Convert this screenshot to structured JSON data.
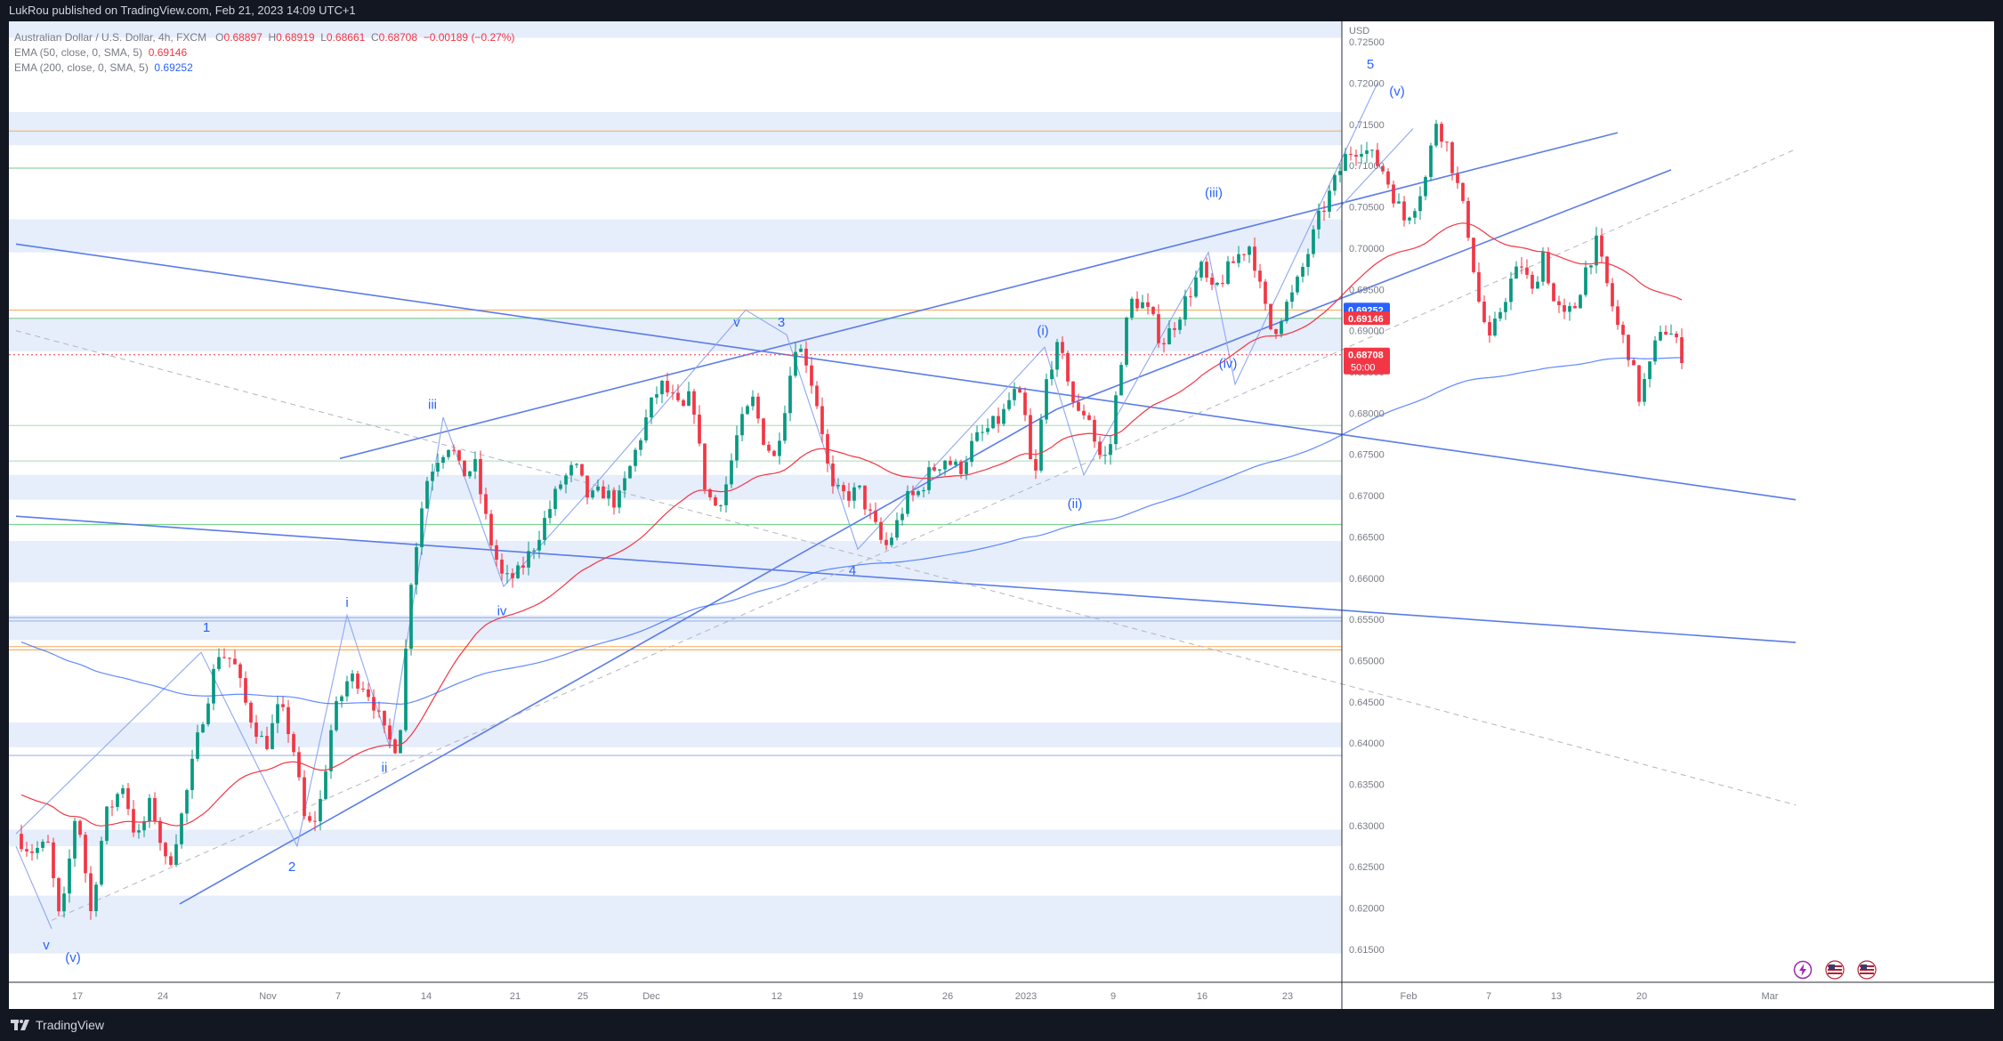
{
  "header": {
    "publisher_text": "LukRou published on TradingView.com, Feb 21, 2023 14:09 UTC+1"
  },
  "legend": {
    "symbol": "Australian Dollar / U.S. Dollar, 4h, FXCM",
    "open_label": "O",
    "open": "0.68897",
    "high_label": "H",
    "high": "0.68919",
    "low_label": "L",
    "low": "0.68661",
    "close_label": "C",
    "close": "0.68708",
    "change": "−0.00189 (−0.27%)",
    "ema50_label": "EMA (50, close, 0, SMA, 5)",
    "ema50_value": "0.69146",
    "ema200_label": "EMA (200, close, 0, SMA, 5)",
    "ema200_value": "0.69252"
  },
  "footer": {
    "brand": "TradingView"
  },
  "colors": {
    "up": "#089981",
    "down": "#f23645",
    "ema50": "#f23645",
    "ema200": "#2962ff",
    "trendline": "#5b7ce8",
    "zone": "#e3ebfb",
    "price_line": "#f23645"
  },
  "icons": [
    "lightning-icon",
    "us-flag-icon",
    "us-flag-icon"
  ],
  "chart_data": {
    "type": "candlestick",
    "instrument": "AUD/USD",
    "timeframe": "4h",
    "y_axis_label": "USD",
    "ylim": [
      0.611,
      0.7275
    ],
    "y_ticks": [
      "0.72500",
      "0.72000",
      "0.71500",
      "0.71000",
      "0.70500",
      "0.70000",
      "0.69500",
      "0.69000",
      "0.68500",
      "0.68000",
      "0.67500",
      "0.67000",
      "0.66500",
      "0.66000",
      "0.65500",
      "0.65000",
      "0.64500",
      "0.64000",
      "0.63500",
      "0.63000",
      "0.62500",
      "0.62000",
      "0.61500"
    ],
    "x_ticks": [
      "17",
      "24",
      "Nov",
      "7",
      "14",
      "21",
      "25",
      "Dec",
      "12",
      "19",
      "26",
      "2023",
      "9",
      "16",
      "23",
      "Feb",
      "7",
      "13",
      "20",
      "Mar"
    ],
    "x_tick_pos": [
      0.0345,
      0.0825,
      0.1415,
      0.181,
      0.2305,
      0.2805,
      0.3185,
      0.357,
      0.4275,
      0.473,
      0.5235,
      0.5675,
      0.6165,
      0.6665,
      0.7145,
      0.7825,
      0.8275,
      0.8655,
      0.9135,
      0.9855
    ],
    "price_labels": [
      {
        "text": "0.69252",
        "color": "#2962ff",
        "value": 0.69252
      },
      {
        "text": "0.69146",
        "color": "#f23645",
        "value": 0.69146
      },
      {
        "text": "0.68708",
        "color": "#f23645",
        "value": 0.68708,
        "sub": "50:00"
      }
    ],
    "ohlc_path": [
      [
        0.0,
        0.629
      ],
      [
        0.008,
        0.627
      ],
      [
        0.018,
        0.6275
      ],
      [
        0.025,
        0.6175
      ],
      [
        0.034,
        0.6325
      ],
      [
        0.042,
        0.6195
      ],
      [
        0.05,
        0.631
      ],
      [
        0.06,
        0.635
      ],
      [
        0.068,
        0.628
      ],
      [
        0.076,
        0.633
      ],
      [
        0.085,
        0.6245
      ],
      [
        0.094,
        0.632
      ],
      [
        0.104,
        0.6425
      ],
      [
        0.114,
        0.651
      ],
      [
        0.122,
        0.65
      ],
      [
        0.13,
        0.644
      ],
      [
        0.14,
        0.6395
      ],
      [
        0.148,
        0.6445
      ],
      [
        0.155,
        0.6405
      ],
      [
        0.163,
        0.6295
      ],
      [
        0.17,
        0.6315
      ],
      [
        0.178,
        0.643
      ],
      [
        0.187,
        0.648
      ],
      [
        0.194,
        0.6475
      ],
      [
        0.2,
        0.6455
      ],
      [
        0.208,
        0.6405
      ],
      [
        0.215,
        0.6395
      ],
      [
        0.222,
        0.66
      ],
      [
        0.23,
        0.6715
      ],
      [
        0.236,
        0.6745
      ],
      [
        0.244,
        0.6765
      ],
      [
        0.25,
        0.6725
      ],
      [
        0.258,
        0.6735
      ],
      [
        0.266,
        0.665
      ],
      [
        0.274,
        0.6595
      ],
      [
        0.282,
        0.6605
      ],
      [
        0.29,
        0.6635
      ],
      [
        0.298,
        0.6675
      ],
      [
        0.306,
        0.6715
      ],
      [
        0.314,
        0.6735
      ],
      [
        0.322,
        0.6695
      ],
      [
        0.33,
        0.6705
      ],
      [
        0.338,
        0.669
      ],
      [
        0.346,
        0.674
      ],
      [
        0.356,
        0.6805
      ],
      [
        0.362,
        0.6835
      ],
      [
        0.368,
        0.682
      ],
      [
        0.374,
        0.68
      ],
      [
        0.38,
        0.6825
      ],
      [
        0.386,
        0.672
      ],
      [
        0.392,
        0.6685
      ],
      [
        0.398,
        0.6705
      ],
      [
        0.406,
        0.678
      ],
      [
        0.414,
        0.6815
      ],
      [
        0.42,
        0.677
      ],
      [
        0.426,
        0.6745
      ],
      [
        0.432,
        0.681
      ],
      [
        0.438,
        0.6885
      ],
      [
        0.444,
        0.6865
      ],
      [
        0.452,
        0.6795
      ],
      [
        0.458,
        0.6705
      ],
      [
        0.466,
        0.67
      ],
      [
        0.474,
        0.6705
      ],
      [
        0.482,
        0.6665
      ],
      [
        0.488,
        0.6635
      ],
      [
        0.494,
        0.666
      ],
      [
        0.5,
        0.6695
      ],
      [
        0.506,
        0.67
      ],
      [
        0.514,
        0.673
      ],
      [
        0.522,
        0.6745
      ],
      [
        0.53,
        0.673
      ],
      [
        0.538,
        0.6765
      ],
      [
        0.546,
        0.678
      ],
      [
        0.554,
        0.6795
      ],
      [
        0.56,
        0.6825
      ],
      [
        0.566,
        0.681
      ],
      [
        0.572,
        0.6705
      ],
      [
        0.578,
        0.683
      ],
      [
        0.584,
        0.688
      ],
      [
        0.59,
        0.6855
      ],
      [
        0.596,
        0.6795
      ],
      [
        0.602,
        0.6805
      ],
      [
        0.608,
        0.675
      ],
      [
        0.614,
        0.6745
      ],
      [
        0.62,
        0.6855
      ],
      [
        0.626,
        0.6935
      ],
      [
        0.632,
        0.6935
      ],
      [
        0.638,
        0.6915
      ],
      [
        0.644,
        0.6885
      ],
      [
        0.65,
        0.6905
      ],
      [
        0.658,
        0.694
      ],
      [
        0.666,
        0.6975
      ],
      [
        0.672,
        0.6945
      ],
      [
        0.68,
        0.697
      ],
      [
        0.688,
        0.6995
      ],
      [
        0.694,
        0.7005
      ],
      [
        0.7,
        0.694
      ],
      [
        0.706,
        0.6895
      ],
      [
        0.712,
        0.6925
      ],
      [
        0.718,
        0.6945
      ],
      [
        0.726,
        0.6995
      ],
      [
        0.732,
        0.7035
      ],
      [
        0.74,
        0.7075
      ],
      [
        0.748,
        0.7115
      ],
      [
        0.756,
        0.7125
      ],
      [
        0.762,
        0.711
      ],
      [
        0.768,
        0.7095
      ],
      [
        0.774,
        0.7065
      ],
      [
        0.78,
        0.7035
      ],
      [
        0.786,
        0.7055
      ],
      [
        0.792,
        0.7085
      ],
      [
        0.798,
        0.7155
      ],
      [
        0.804,
        0.7125
      ],
      [
        0.81,
        0.7075
      ],
      [
        0.816,
        0.702
      ],
      [
        0.822,
        0.6935
      ],
      [
        0.828,
        0.6885
      ],
      [
        0.834,
        0.6925
      ],
      [
        0.84,
        0.696
      ],
      [
        0.846,
        0.698
      ],
      [
        0.852,
        0.6945
      ],
      [
        0.858,
        0.6995
      ],
      [
        0.864,
        0.6935
      ],
      [
        0.87,
        0.6915
      ],
      [
        0.876,
        0.693
      ],
      [
        0.882,
        0.6975
      ],
      [
        0.888,
        0.7005
      ],
      [
        0.894,
        0.6955
      ],
      [
        0.9,
        0.6905
      ],
      [
        0.906,
        0.6875
      ],
      [
        0.912,
        0.682
      ],
      [
        0.918,
        0.6855
      ],
      [
        0.924,
        0.6905
      ],
      [
        0.93,
        0.6895
      ],
      [
        0.936,
        0.6871
      ]
    ],
    "zones": [
      [
        0.7255,
        0.7295
      ],
      [
        0.7125,
        0.7165
      ],
      [
        0.6995,
        0.7035
      ],
      [
        0.6875,
        0.6915
      ],
      [
        0.6695,
        0.6725
      ],
      [
        0.6595,
        0.6645
      ],
      [
        0.6525,
        0.6555
      ],
      [
        0.6395,
        0.6425
      ],
      [
        0.6275,
        0.6295
      ],
      [
        0.6145,
        0.6215
      ]
    ],
    "horizontal_lines": [
      {
        "y": 0.7142,
        "color": "#f7b26b"
      },
      {
        "y": 0.7097,
        "color": "#8fd19e"
      },
      {
        "y": 0.6925,
        "color": "#f7b26b"
      },
      {
        "y": 0.6915,
        "color": "#8fd19e"
      },
      {
        "y": 0.6785,
        "color": "#b8e2c3"
      },
      {
        "y": 0.6742,
        "color": "#b8e2c3"
      },
      {
        "y": 0.6665,
        "color": "#7bd38f"
      },
      {
        "y": 0.6552,
        "color": "#9db6ea"
      },
      {
        "y": 0.6548,
        "color": "#9db6ea"
      },
      {
        "y": 0.6517,
        "color": "#f7b26b"
      },
      {
        "y": 0.6513,
        "color": "#f7b26b"
      },
      {
        "y": 0.6385,
        "color": "#9db6ea"
      }
    ],
    "trend_lines": [
      {
        "p1": [
          0.0,
          0.7005
        ],
        "p2": [
          1.0,
          0.6695
        ]
      },
      {
        "p1": [
          0.0,
          0.6675
        ],
        "p2": [
          1.0,
          0.6522
        ]
      },
      {
        "p1": [
          0.092,
          0.6205
        ],
        "p2": [
          0.585,
          0.6805
        ]
      },
      {
        "p1": [
          0.585,
          0.6805
        ],
        "p2": [
          0.93,
          0.7095
        ]
      },
      {
        "p1": [
          0.182,
          0.6745
        ],
        "p2": [
          0.9,
          0.714
        ]
      },
      {
        "p1": [
          0.0,
          0.69
        ],
        "p2": [
          1.0,
          0.6325
        ],
        "dashed": true
      },
      {
        "p1": [
          0.02,
          0.6185
        ],
        "p2": [
          1.0,
          0.712
        ],
        "dashed": true
      }
    ],
    "wave_lines": [
      [
        [
          0.0,
          0.629
        ],
        [
          0.104,
          0.651
        ],
        [
          0.158,
          0.6275
        ],
        [
          0.186,
          0.6555
        ],
        [
          0.21,
          0.6395
        ],
        [
          0.24,
          0.6795
        ],
        [
          0.274,
          0.659
        ],
        [
          0.322,
          0.6705
        ],
        [
          0.41,
          0.6925
        ],
        [
          0.433,
          0.6895
        ],
        [
          0.473,
          0.6635
        ],
        [
          0.578,
          0.688
        ],
        [
          0.6,
          0.6725
        ],
        [
          0.67,
          0.6995
        ],
        [
          0.685,
          0.6835
        ],
        [
          0.765,
          0.72
        ]
      ],
      [
        [
          0.742,
          0.7045
        ],
        [
          0.785,
          0.7145
        ]
      ],
      [
        [
          0.0,
          0.6275
        ],
        [
          0.02,
          0.6175
        ]
      ]
    ],
    "wave_labels": [
      {
        "text": "1",
        "x": 0.107,
        "y": 0.6535
      },
      {
        "text": "2",
        "x": 0.155,
        "y": 0.6245
      },
      {
        "text": "3",
        "x": 0.43,
        "y": 0.6905
      },
      {
        "text": "4",
        "x": 0.47,
        "y": 0.6604
      },
      {
        "text": "5",
        "x": 0.761,
        "y": 0.7218
      },
      {
        "text": "i",
        "x": 0.186,
        "y": 0.6565
      },
      {
        "text": "ii",
        "x": 0.207,
        "y": 0.6365
      },
      {
        "text": "iii",
        "x": 0.234,
        "y": 0.6805
      },
      {
        "text": "iv",
        "x": 0.273,
        "y": 0.6555
      },
      {
        "text": "v",
        "x": 0.405,
        "y": 0.6905
      },
      {
        "text": "v",
        "x": 0.017,
        "y": 0.615
      },
      {
        "text": "(v)",
        "x": 0.032,
        "y": 0.6135
      },
      {
        "text": "(i)",
        "x": 0.577,
        "y": 0.6895
      },
      {
        "text": "(ii)",
        "x": 0.595,
        "y": 0.6685
      },
      {
        "text": "(iii)",
        "x": 0.673,
        "y": 0.7062
      },
      {
        "text": "(iv)",
        "x": 0.681,
        "y": 0.6855
      },
      {
        "text": "(v)",
        "x": 0.776,
        "y": 0.7185
      }
    ]
  }
}
